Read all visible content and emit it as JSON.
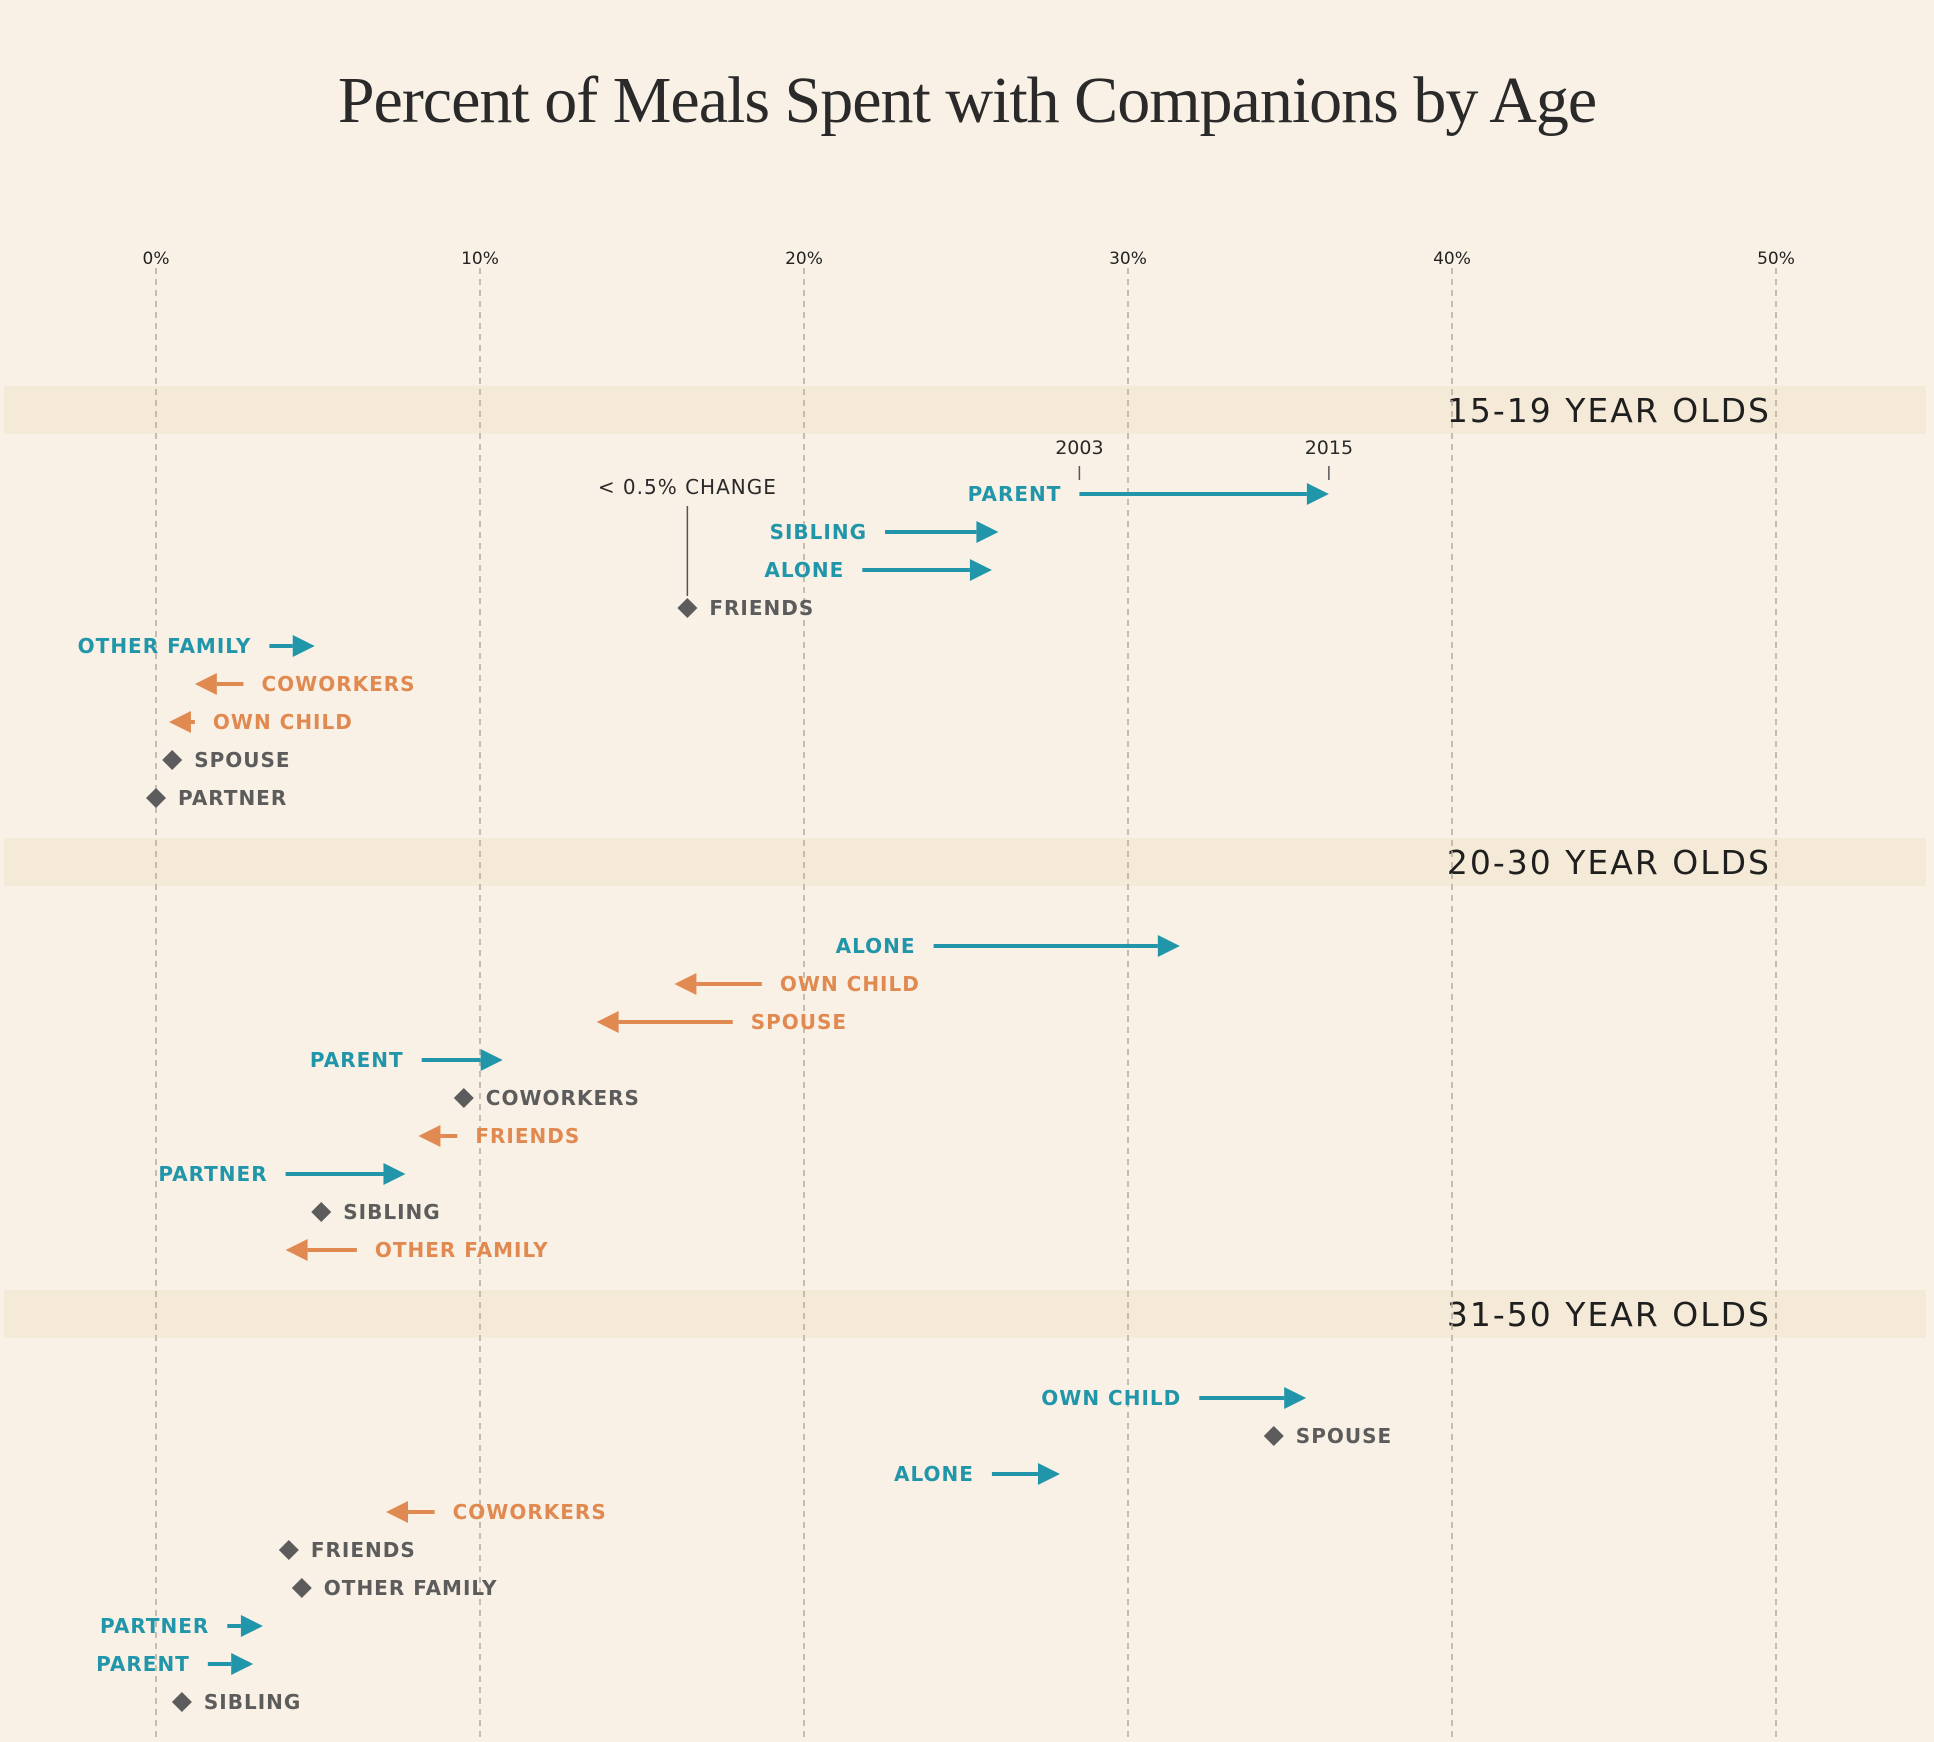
{
  "colors": {
    "background": "#f9f1e5",
    "band": "#f5ead7",
    "increase": "#2196aa",
    "decrease": "#e08a52",
    "no_change": "#5c5c5c",
    "grid": "#b5aca0"
  },
  "chart_data": {
    "type": "arrow-dot",
    "title": "Percent of Meals Spent with Companions by Age",
    "x_ticks": [
      0,
      10,
      20,
      30,
      40,
      50
    ],
    "x_tick_labels": [
      "0%",
      "10%",
      "20%",
      "30%",
      "40%",
      "50%"
    ],
    "xlim": [
      0,
      50
    ],
    "grid": true,
    "legend": {
      "start_label": "2003",
      "end_label": "2015",
      "no_change_label": "< 0.5% CHANGE"
    },
    "groups": [
      {
        "name": "15-19 YEAR OLDS",
        "rows": [
          {
            "label": "PARENT",
            "v2003": 28.5,
            "v2015": 36.2
          },
          {
            "label": "SIBLING",
            "v2003": 22.5,
            "v2015": 26.0
          },
          {
            "label": "ALONE",
            "v2003": 21.8,
            "v2015": 25.8
          },
          {
            "label": "FRIENDS",
            "v2003": 16.4,
            "v2015": 16.4
          },
          {
            "label": "OTHER FAMILY",
            "v2003": 3.5,
            "v2015": 4.9
          },
          {
            "label": "COWORKERS",
            "v2003": 2.7,
            "v2015": 1.2
          },
          {
            "label": "OWN CHILD",
            "v2003": 1.2,
            "v2015": 0.4
          },
          {
            "label": "SPOUSE",
            "v2003": 0.5,
            "v2015": 0.5
          },
          {
            "label": "PARTNER",
            "v2003": 0.0,
            "v2015": 0.0
          }
        ]
      },
      {
        "name": "20-30 YEAR OLDS",
        "rows": [
          {
            "label": "ALONE",
            "v2003": 24.0,
            "v2015": 31.6
          },
          {
            "label": "OWN CHILD",
            "v2003": 18.7,
            "v2015": 16.0
          },
          {
            "label": "SPOUSE",
            "v2003": 17.8,
            "v2015": 13.6
          },
          {
            "label": "PARENT",
            "v2003": 8.2,
            "v2015": 10.7
          },
          {
            "label": "COWORKERS",
            "v2003": 9.5,
            "v2015": 9.5
          },
          {
            "label": "FRIENDS",
            "v2003": 9.3,
            "v2015": 8.1
          },
          {
            "label": "PARTNER",
            "v2003": 4.0,
            "v2015": 7.7
          },
          {
            "label": "SIBLING",
            "v2003": 5.1,
            "v2015": 5.1
          },
          {
            "label": "OTHER FAMILY",
            "v2003": 6.2,
            "v2015": 4.0
          }
        ]
      },
      {
        "name": "31-50 YEAR OLDS",
        "rows": [
          {
            "label": "OWN CHILD",
            "v2003": 32.2,
            "v2015": 35.5
          },
          {
            "label": "SPOUSE",
            "v2003": 34.5,
            "v2015": 34.5
          },
          {
            "label": "ALONE",
            "v2003": 25.8,
            "v2015": 27.9
          },
          {
            "label": "COWORKERS",
            "v2003": 8.6,
            "v2015": 7.1
          },
          {
            "label": "FRIENDS",
            "v2003": 4.1,
            "v2015": 4.1
          },
          {
            "label": "OTHER FAMILY",
            "v2003": 4.5,
            "v2015": 4.5
          },
          {
            "label": "PARTNER",
            "v2003": 2.2,
            "v2015": 3.3
          },
          {
            "label": "PARENT",
            "v2003": 1.6,
            "v2015": 3.0
          },
          {
            "label": "SIBLING",
            "v2003": 0.8,
            "v2015": 0.8
          }
        ]
      }
    ]
  }
}
